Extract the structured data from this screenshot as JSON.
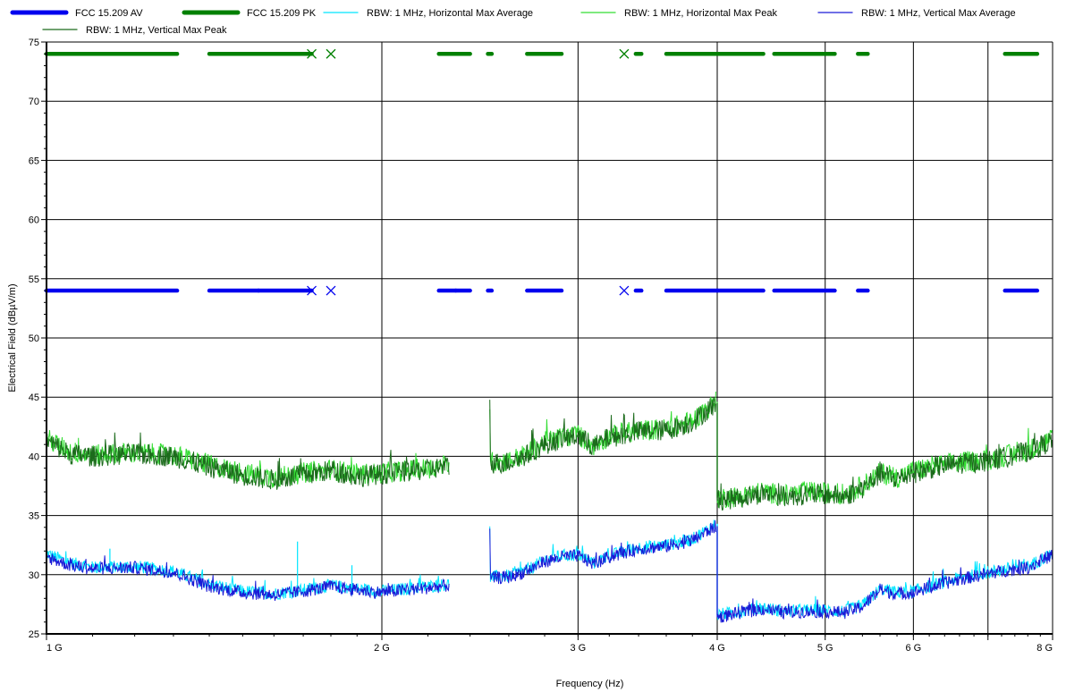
{
  "chart_data": {
    "type": "line",
    "title": "",
    "xlabel": "Frequency (Hz)",
    "ylabel": "Electrical Field (dBµV/m)",
    "x_scale": "log",
    "xlim": [
      1000000000,
      8000000000
    ],
    "ylim": [
      25,
      75
    ],
    "grid": true,
    "legend_position": "top",
    "x_ticks": [
      {
        "value": 1000000000,
        "label": "1 G"
      },
      {
        "value": 2000000000,
        "label": "2 G"
      },
      {
        "value": 3000000000,
        "label": "3 G"
      },
      {
        "value": 4000000000,
        "label": "4 G"
      },
      {
        "value": 5000000000,
        "label": "5 G"
      },
      {
        "value": 6000000000,
        "label": "6 G"
      },
      {
        "value": 8000000000,
        "label": "8 G"
      }
    ],
    "x_minor_gridlines": [
      7000000000
    ],
    "y_ticks": [
      25,
      30,
      35,
      40,
      45,
      50,
      55,
      60,
      65,
      70,
      75
    ],
    "series": [
      {
        "name": "FCC 15.209 AV",
        "style": "limit",
        "color": "#0000ee",
        "value": 54,
        "segments": [
          [
            1000000000,
            1310000000
          ],
          [
            1400000000,
            1550000000
          ],
          [
            1550000000,
            1730000000
          ],
          [
            2250000000,
            2330000000
          ],
          [
            2330000000,
            2400000000
          ],
          [
            2490000000,
            2510000000
          ],
          [
            2700000000,
            2900000000
          ],
          [
            3380000000,
            3420000000
          ],
          [
            3600000000,
            4000000000
          ],
          [
            4000000000,
            4400000000
          ],
          [
            4500000000,
            5100000000
          ],
          [
            5350000000,
            5460000000
          ],
          [
            7250000000,
            7750000000
          ]
        ],
        "markers": [
          1730000000,
          1800000000,
          3300000000
        ]
      },
      {
        "name": "FCC 15.209 PK",
        "style": "limit",
        "color": "#008000",
        "value": 74,
        "segments": [
          [
            1000000000,
            1310000000
          ],
          [
            1400000000,
            1550000000
          ],
          [
            1550000000,
            1730000000
          ],
          [
            2250000000,
            2330000000
          ],
          [
            2330000000,
            2400000000
          ],
          [
            2490000000,
            2510000000
          ],
          [
            2700000000,
            2900000000
          ],
          [
            3380000000,
            3420000000
          ],
          [
            3600000000,
            4000000000
          ],
          [
            4000000000,
            4400000000
          ],
          [
            4500000000,
            5100000000
          ],
          [
            5350000000,
            5460000000
          ],
          [
            7250000000,
            7750000000
          ]
        ],
        "markers": [
          1730000000,
          1800000000,
          3300000000
        ]
      },
      {
        "name": "RBW: 1 MHz, Horizontal Max Average",
        "style": "trace",
        "color": "#00e5ff",
        "segments": [
          {
            "x": [
              1000000000,
              1050000000,
              1100000000,
              1200000000,
              1300000000,
              1400000000,
              1500000000,
              1600000000,
              1700000000,
              1800000000,
              1900000000,
              2000000000,
              2100000000,
              2200000000,
              2300000000
            ],
            "y": [
              31.8,
              31.0,
              30.6,
              30.7,
              30.3,
              29.2,
              28.6,
              28.4,
              28.7,
              29.1,
              28.8,
              28.6,
              28.8,
              29.0,
              29.2
            ]
          },
          {
            "x": [
              2500000000,
              2600000000,
              2700000000,
              2800000000,
              2900000000,
              3000000000,
              3100000000,
              3200000000,
              3400000000,
              3600000000,
              3800000000,
              3990000000
            ],
            "y": [
              29.8,
              29.9,
              30.4,
              31.2,
              31.6,
              31.7,
              31.0,
              31.6,
              32.3,
              32.5,
              33.0,
              34.3
            ]
          },
          {
            "x": [
              4000000000,
              4200000000,
              4400000000,
              4600000000,
              4800000000,
              5000000000,
              5200000000,
              5400000000,
              5600000000,
              5800000000,
              6000000000,
              6300000000,
              6600000000,
              7000000000,
              7300000000,
              7600000000,
              8000000000
            ],
            "y": [
              26.6,
              26.9,
              27.2,
              26.9,
              27.0,
              27.0,
              26.9,
              27.4,
              28.8,
              28.5,
              28.6,
              29.2,
              29.7,
              30.2,
              30.5,
              30.7,
              31.8
            ]
          }
        ],
        "spikes": [
          {
            "x": 1140000000,
            "y": 32.2
          },
          {
            "x": 1680000000,
            "y": 32.8
          },
          {
            "x": 1880000000,
            "y": 30.8
          }
        ]
      },
      {
        "name": "RBW: 1 MHz, Horizontal Max Peak",
        "style": "trace",
        "color": "#33dd33",
        "segments": [
          {
            "x": [
              1000000000,
              1050000000,
              1100000000,
              1200000000,
              1300000000,
              1400000000,
              1500000000,
              1600000000,
              1700000000,
              1800000000,
              1900000000,
              2000000000,
              2100000000,
              2200000000,
              2300000000
            ],
            "y": [
              41.5,
              40.4,
              40.1,
              40.3,
              40.1,
              39.3,
              38.6,
              38.2,
              38.6,
              38.9,
              38.5,
              38.6,
              38.8,
              39.0,
              39.3
            ]
          },
          {
            "x": [
              2500000000,
              2600000000,
              2700000000,
              2800000000,
              2900000000,
              3000000000,
              3100000000,
              3200000000,
              3400000000,
              3600000000,
              3800000000,
              3990000000
            ],
            "y": [
              39.5,
              39.6,
              40.2,
              41.2,
              41.6,
              41.8,
              40.9,
              41.7,
              42.2,
              42.3,
              43.0,
              44.6
            ]
          },
          {
            "x": [
              4000000000,
              4200000000,
              4400000000,
              4600000000,
              4800000000,
              5000000000,
              5200000000,
              5400000000,
              5600000000,
              5800000000,
              6000000000,
              6300000000,
              6600000000,
              7000000000,
              7300000000,
              7600000000,
              8000000000
            ],
            "y": [
              36.5,
              36.6,
              37.0,
              36.7,
              37.0,
              36.9,
              36.8,
              37.5,
              38.6,
              38.2,
              38.8,
              39.2,
              39.5,
              39.7,
              40.1,
              40.5,
              41.5
            ]
          }
        ]
      },
      {
        "name": "RBW: 1 MHz, Vertical Max Average",
        "style": "trace",
        "color": "#1a1ad6",
        "segments": [
          {
            "x": [
              1000000000,
              1050000000,
              1100000000,
              1200000000,
              1300000000,
              1400000000,
              1500000000,
              1600000000,
              1700000000,
              1800000000,
              1900000000,
              2000000000,
              2100000000,
              2200000000,
              2300000000
            ],
            "y": [
              31.5,
              30.8,
              30.5,
              30.6,
              30.2,
              29.0,
              28.5,
              28.3,
              28.6,
              29.0,
              28.7,
              28.5,
              28.7,
              28.9,
              29.1
            ]
          },
          {
            "x": [
              2500000000,
              2600000000,
              2700000000,
              2800000000,
              2900000000,
              3000000000,
              3100000000,
              3200000000,
              3400000000,
              3600000000,
              3800000000,
              3990000000
            ],
            "y": [
              29.7,
              29.8,
              30.3,
              31.1,
              31.5,
              31.6,
              30.9,
              31.5,
              32.2,
              32.4,
              32.9,
              34.1
            ]
          },
          {
            "x": [
              4000000000,
              4200000000,
              4400000000,
              4600000000,
              4800000000,
              5000000000,
              5200000000,
              5400000000,
              5600000000,
              5800000000,
              6000000000,
              6300000000,
              6600000000,
              7000000000,
              7300000000,
              7600000000,
              8000000000
            ],
            "y": [
              26.4,
              26.8,
              27.1,
              26.8,
              26.9,
              26.9,
              26.8,
              27.3,
              28.7,
              28.4,
              28.5,
              29.1,
              29.6,
              30.1,
              30.4,
              30.6,
              31.7
            ]
          }
        ]
      },
      {
        "name": "RBW: 1 MHz, Vertical Max Peak",
        "style": "trace",
        "color": "#1c6b1c",
        "segments": [
          {
            "x": [
              1000000000,
              1050000000,
              1100000000,
              1200000000,
              1300000000,
              1400000000,
              1500000000,
              1600000000,
              1700000000,
              1800000000,
              1900000000,
              2000000000,
              2100000000,
              2200000000,
              2300000000
            ],
            "y": [
              41.3,
              40.2,
              40.0,
              40.2,
              40.0,
              39.1,
              38.4,
              38.0,
              38.4,
              38.8,
              38.3,
              38.5,
              38.7,
              38.9,
              39.2
            ]
          },
          {
            "x": [
              2500000000,
              2600000000,
              2700000000,
              2800000000,
              2900000000,
              3000000000,
              3100000000,
              3200000000,
              3400000000,
              3600000000,
              3800000000,
              3990000000
            ],
            "y": [
              39.4,
              39.5,
              40.1,
              41.0,
              41.5,
              41.7,
              40.8,
              41.6,
              42.1,
              42.2,
              42.9,
              44.5
            ]
          },
          {
            "x": [
              4000000000,
              4200000000,
              4400000000,
              4600000000,
              4800000000,
              5000000000,
              5200000000,
              5400000000,
              5600000000,
              5800000000,
              6000000000,
              6300000000,
              6600000000,
              7000000000,
              7300000000,
              7600000000,
              8000000000
            ],
            "y": [
              36.3,
              36.5,
              36.9,
              36.6,
              36.8,
              36.8,
              36.6,
              37.3,
              38.5,
              38.1,
              38.6,
              39.1,
              39.4,
              39.6,
              40.0,
              40.4,
              41.3
            ]
          }
        ]
      }
    ]
  }
}
